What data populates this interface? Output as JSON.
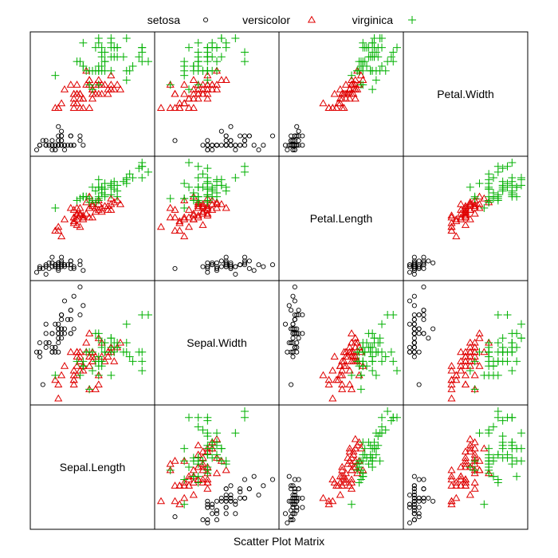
{
  "chart_data": {
    "type": "scatter",
    "title": "",
    "xlabel": "Scatter Plot Matrix",
    "variables": [
      "Sepal.Length",
      "Sepal.Width",
      "Petal.Length",
      "Petal.Width"
    ],
    "ranges": {
      "Sepal.Length": [
        4.3,
        7.9
      ],
      "Sepal.Width": [
        2.0,
        4.4
      ],
      "Petal.Length": [
        1.0,
        6.9
      ],
      "Petal.Width": [
        0.1,
        2.5
      ]
    },
    "legend": {
      "position": "top",
      "orientation": "horizontal"
    },
    "grid": false,
    "series": [
      {
        "name": "setosa",
        "marker": "circle",
        "color": "#000000",
        "points": [
          [
            5.1,
            3.5,
            1.4,
            0.2
          ],
          [
            4.9,
            3.0,
            1.4,
            0.2
          ],
          [
            4.7,
            3.2,
            1.3,
            0.2
          ],
          [
            4.6,
            3.1,
            1.5,
            0.2
          ],
          [
            5.0,
            3.6,
            1.4,
            0.2
          ],
          [
            5.4,
            3.9,
            1.7,
            0.4
          ],
          [
            4.6,
            3.4,
            1.4,
            0.3
          ],
          [
            5.0,
            3.4,
            1.5,
            0.2
          ],
          [
            4.4,
            2.9,
            1.4,
            0.2
          ],
          [
            4.9,
            3.1,
            1.5,
            0.1
          ],
          [
            5.4,
            3.7,
            1.5,
            0.2
          ],
          [
            4.8,
            3.4,
            1.6,
            0.2
          ],
          [
            4.8,
            3.0,
            1.4,
            0.1
          ],
          [
            4.3,
            3.0,
            1.1,
            0.1
          ],
          [
            5.8,
            4.0,
            1.2,
            0.2
          ],
          [
            5.7,
            4.4,
            1.5,
            0.4
          ],
          [
            5.4,
            3.9,
            1.3,
            0.4
          ],
          [
            5.1,
            3.5,
            1.4,
            0.3
          ],
          [
            5.7,
            3.8,
            1.7,
            0.3
          ],
          [
            5.1,
            3.8,
            1.5,
            0.3
          ],
          [
            5.4,
            3.4,
            1.7,
            0.2
          ],
          [
            5.1,
            3.7,
            1.5,
            0.4
          ],
          [
            4.6,
            3.6,
            1.0,
            0.2
          ],
          [
            5.1,
            3.3,
            1.7,
            0.5
          ],
          [
            4.8,
            3.4,
            1.9,
            0.2
          ],
          [
            5.0,
            3.0,
            1.6,
            0.2
          ],
          [
            5.0,
            3.4,
            1.6,
            0.4
          ],
          [
            5.2,
            3.5,
            1.5,
            0.2
          ],
          [
            5.2,
            3.4,
            1.4,
            0.2
          ],
          [
            4.7,
            3.2,
            1.6,
            0.2
          ],
          [
            4.8,
            3.1,
            1.6,
            0.2
          ],
          [
            5.4,
            3.4,
            1.5,
            0.4
          ],
          [
            5.2,
            4.1,
            1.5,
            0.1
          ],
          [
            5.5,
            4.2,
            1.4,
            0.2
          ],
          [
            4.9,
            3.1,
            1.5,
            0.2
          ],
          [
            5.0,
            3.2,
            1.2,
            0.2
          ],
          [
            5.5,
            3.5,
            1.3,
            0.2
          ],
          [
            4.9,
            3.6,
            1.4,
            0.1
          ],
          [
            4.4,
            3.0,
            1.3,
            0.2
          ],
          [
            5.1,
            3.4,
            1.5,
            0.2
          ],
          [
            5.0,
            3.5,
            1.3,
            0.3
          ],
          [
            4.5,
            2.3,
            1.3,
            0.3
          ],
          [
            4.4,
            3.2,
            1.3,
            0.2
          ],
          [
            5.0,
            3.5,
            1.6,
            0.6
          ],
          [
            5.1,
            3.8,
            1.9,
            0.4
          ],
          [
            4.8,
            3.0,
            1.4,
            0.3
          ],
          [
            5.1,
            3.8,
            1.6,
            0.2
          ],
          [
            4.6,
            3.2,
            1.4,
            0.2
          ],
          [
            5.3,
            3.7,
            1.5,
            0.2
          ],
          [
            5.0,
            3.3,
            1.4,
            0.2
          ]
        ]
      },
      {
        "name": "versicolor",
        "marker": "triangle",
        "color": "#DF0000",
        "points": [
          [
            7.0,
            3.2,
            4.7,
            1.4
          ],
          [
            6.4,
            3.2,
            4.5,
            1.5
          ],
          [
            6.9,
            3.1,
            4.9,
            1.5
          ],
          [
            5.5,
            2.3,
            4.0,
            1.3
          ],
          [
            6.5,
            2.8,
            4.6,
            1.5
          ],
          [
            5.7,
            2.8,
            4.5,
            1.3
          ],
          [
            6.3,
            3.3,
            4.7,
            1.6
          ],
          [
            4.9,
            2.4,
            3.3,
            1.0
          ],
          [
            6.6,
            2.9,
            4.6,
            1.3
          ],
          [
            5.2,
            2.7,
            3.9,
            1.4
          ],
          [
            5.0,
            2.0,
            3.5,
            1.0
          ],
          [
            5.9,
            3.0,
            4.2,
            1.5
          ],
          [
            6.0,
            2.2,
            4.0,
            1.0
          ],
          [
            6.1,
            2.9,
            4.7,
            1.4
          ],
          [
            5.6,
            2.9,
            3.6,
            1.3
          ],
          [
            6.7,
            3.1,
            4.4,
            1.4
          ],
          [
            5.6,
            3.0,
            4.5,
            1.5
          ],
          [
            5.8,
            2.7,
            4.1,
            1.0
          ],
          [
            6.2,
            2.2,
            4.5,
            1.5
          ],
          [
            5.6,
            2.5,
            3.9,
            1.1
          ],
          [
            5.9,
            3.2,
            4.8,
            1.8
          ],
          [
            6.1,
            2.8,
            4.0,
            1.3
          ],
          [
            6.3,
            2.5,
            4.9,
            1.5
          ],
          [
            6.1,
            2.8,
            4.7,
            1.2
          ],
          [
            6.4,
            2.9,
            4.3,
            1.3
          ],
          [
            6.6,
            3.0,
            4.4,
            1.4
          ],
          [
            6.8,
            2.8,
            4.8,
            1.4
          ],
          [
            6.7,
            3.0,
            5.0,
            1.7
          ],
          [
            6.0,
            2.9,
            4.5,
            1.5
          ],
          [
            5.7,
            2.6,
            3.5,
            1.0
          ],
          [
            5.5,
            2.4,
            3.8,
            1.1
          ],
          [
            5.5,
            2.4,
            3.7,
            1.0
          ],
          [
            5.8,
            2.7,
            3.9,
            1.2
          ],
          [
            6.0,
            2.7,
            5.1,
            1.6
          ],
          [
            5.4,
            3.0,
            4.5,
            1.5
          ],
          [
            6.0,
            3.4,
            4.5,
            1.6
          ],
          [
            6.7,
            3.1,
            4.7,
            1.5
          ],
          [
            6.3,
            2.3,
            4.4,
            1.3
          ],
          [
            5.6,
            3.0,
            4.1,
            1.3
          ],
          [
            5.5,
            2.5,
            4.0,
            1.3
          ],
          [
            5.5,
            2.6,
            4.4,
            1.2
          ],
          [
            6.1,
            3.0,
            4.6,
            1.4
          ],
          [
            5.8,
            2.6,
            4.0,
            1.2
          ],
          [
            5.0,
            2.3,
            3.3,
            1.0
          ],
          [
            5.6,
            2.7,
            4.2,
            1.3
          ],
          [
            5.7,
            3.0,
            4.2,
            1.2
          ],
          [
            5.7,
            2.9,
            4.2,
            1.3
          ],
          [
            6.2,
            2.9,
            4.3,
            1.3
          ],
          [
            5.1,
            2.5,
            3.0,
            1.1
          ],
          [
            5.7,
            2.8,
            4.1,
            1.3
          ]
        ]
      },
      {
        "name": "virginica",
        "marker": "plus",
        "color": "#00B000",
        "points": [
          [
            6.3,
            3.3,
            6.0,
            2.5
          ],
          [
            5.8,
            2.7,
            5.1,
            1.9
          ],
          [
            7.1,
            3.0,
            5.9,
            2.1
          ],
          [
            6.3,
            2.9,
            5.6,
            1.8
          ],
          [
            6.5,
            3.0,
            5.8,
            2.2
          ],
          [
            7.6,
            3.0,
            6.6,
            2.1
          ],
          [
            4.9,
            2.5,
            4.5,
            1.7
          ],
          [
            7.3,
            2.9,
            6.3,
            1.8
          ],
          [
            6.7,
            2.5,
            5.8,
            1.8
          ],
          [
            7.2,
            3.6,
            6.1,
            2.5
          ],
          [
            6.5,
            3.2,
            5.1,
            2.0
          ],
          [
            6.4,
            2.7,
            5.3,
            1.9
          ],
          [
            6.8,
            3.0,
            5.5,
            2.1
          ],
          [
            5.7,
            2.5,
            5.0,
            2.0
          ],
          [
            5.8,
            2.8,
            5.1,
            2.4
          ],
          [
            6.4,
            3.2,
            5.3,
            2.3
          ],
          [
            6.5,
            3.0,
            5.5,
            1.8
          ],
          [
            7.7,
            3.8,
            6.7,
            2.2
          ],
          [
            7.7,
            2.6,
            6.9,
            2.3
          ],
          [
            6.0,
            2.2,
            5.0,
            1.5
          ],
          [
            6.9,
            3.2,
            5.7,
            2.3
          ],
          [
            5.6,
            2.8,
            4.9,
            2.0
          ],
          [
            7.7,
            2.8,
            6.7,
            2.0
          ],
          [
            6.3,
            2.7,
            4.9,
            1.8
          ],
          [
            6.7,
            3.3,
            5.7,
            2.1
          ],
          [
            7.2,
            3.2,
            6.0,
            1.8
          ],
          [
            6.2,
            2.8,
            4.8,
            1.8
          ],
          [
            6.1,
            3.0,
            4.9,
            1.8
          ],
          [
            6.4,
            2.8,
            5.6,
            2.1
          ],
          [
            7.2,
            3.0,
            5.8,
            1.6
          ],
          [
            7.4,
            2.8,
            6.1,
            1.9
          ],
          [
            7.9,
            3.8,
            6.4,
            2.0
          ],
          [
            6.4,
            2.8,
            5.6,
            2.2
          ],
          [
            6.3,
            2.8,
            5.1,
            1.5
          ],
          [
            6.1,
            2.6,
            5.6,
            1.4
          ],
          [
            7.7,
            3.0,
            6.1,
            2.3
          ],
          [
            6.3,
            3.4,
            5.6,
            2.4
          ],
          [
            6.4,
            3.1,
            5.5,
            1.8
          ],
          [
            6.0,
            3.0,
            4.8,
            1.8
          ],
          [
            6.9,
            3.1,
            5.4,
            2.1
          ],
          [
            6.7,
            3.1,
            5.6,
            2.4
          ],
          [
            6.9,
            3.1,
            5.1,
            2.3
          ],
          [
            5.8,
            2.7,
            5.1,
            1.9
          ],
          [
            6.8,
            3.2,
            5.9,
            2.3
          ],
          [
            6.7,
            3.3,
            5.7,
            2.5
          ],
          [
            6.7,
            3.0,
            5.2,
            2.3
          ],
          [
            6.3,
            2.5,
            5.0,
            1.9
          ],
          [
            6.5,
            3.0,
            5.2,
            2.0
          ],
          [
            6.2,
            3.4,
            5.4,
            2.3
          ],
          [
            5.9,
            3.0,
            5.1,
            1.8
          ]
        ]
      }
    ]
  }
}
